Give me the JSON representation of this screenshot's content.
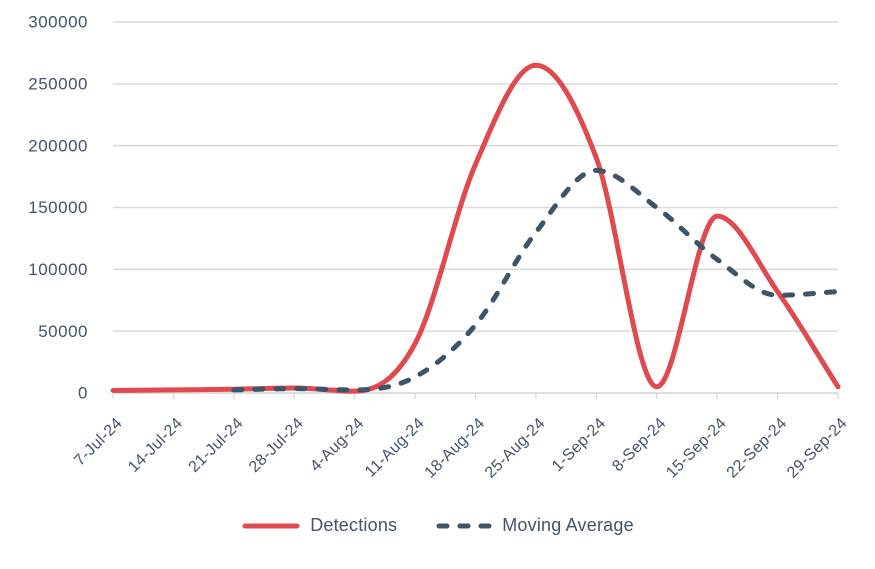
{
  "chart_data": {
    "type": "line",
    "title": "",
    "categories": [
      "7-Jul-24",
      "14-Jul-24",
      "21-Jul-24",
      "28-Jul-24",
      "4-Aug-24",
      "11-Aug-24",
      "18-Aug-24",
      "25-Aug-24",
      "1-Sep-24",
      "8-Sep-24",
      "15-Sep-24",
      "22-Sep-24",
      "29-Sep-24"
    ],
    "series": [
      {
        "name": "Detections",
        "style": "solid",
        "color": "#e0494d",
        "values": [
          2000,
          2500,
          3000,
          4000,
          1500,
          40000,
          185000,
          265000,
          190000,
          5000,
          143000,
          82000,
          5000
        ]
      },
      {
        "name": "Moving Average",
        "style": "dashed",
        "color": "#3d5469",
        "values": [
          null,
          null,
          2500,
          3500,
          2500,
          13000,
          55000,
          130000,
          180000,
          150000,
          108000,
          79000,
          82000
        ]
      }
    ],
    "xlabel": "",
    "ylabel": "",
    "ylim": [
      0,
      300000
    ],
    "ytick_step": 50000,
    "yticks": [
      "0",
      "50000",
      "100000",
      "150000",
      "200000",
      "250000",
      "300000"
    ],
    "grid": "horizontal",
    "legend_position": "bottom",
    "colors": {
      "grid": "#d9d9d9",
      "axis": "#d9d9d9",
      "tick_text": "#44546a"
    }
  }
}
